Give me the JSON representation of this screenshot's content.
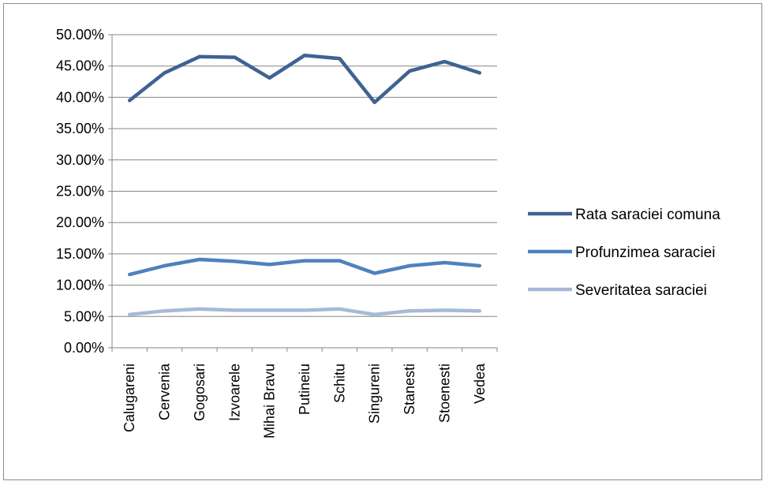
{
  "chart_data": {
    "type": "line",
    "categories": [
      "Calugareni",
      "Cervenia",
      "Gogosari",
      "Izvoarele",
      "Mihai Bravu",
      "Putineiu",
      "Schitu",
      "Singureni",
      "Stanesti",
      "Stoenesti",
      "Vedea"
    ],
    "y_tick_labels": [
      "0.00%",
      "5.00%",
      "10.00%",
      "15.00%",
      "20.00%",
      "25.00%",
      "30.00%",
      "35.00%",
      "40.00%",
      "45.00%",
      "50.00%"
    ],
    "ylim": [
      0,
      50
    ],
    "y_unit": "percent",
    "grid": "horizontal",
    "legend_position": "right",
    "series": [
      {
        "name": "Rata saraciei comuna",
        "color": "#3f6391",
        "values": [
          39.5,
          43.9,
          46.5,
          46.4,
          43.1,
          46.7,
          46.2,
          39.2,
          44.2,
          45.7,
          43.9
        ]
      },
      {
        "name": "Profunzimea saraciei",
        "color": "#4f81bd",
        "values": [
          11.7,
          13.1,
          14.1,
          13.8,
          13.3,
          13.9,
          13.9,
          11.9,
          13.1,
          13.6,
          13.1
        ]
      },
      {
        "name": "Severitatea saraciei",
        "color": "#a7b9d9",
        "values": [
          5.3,
          5.9,
          6.2,
          6.0,
          6.0,
          6.0,
          6.2,
          5.3,
          5.9,
          6.0,
          5.9
        ]
      }
    ]
  }
}
